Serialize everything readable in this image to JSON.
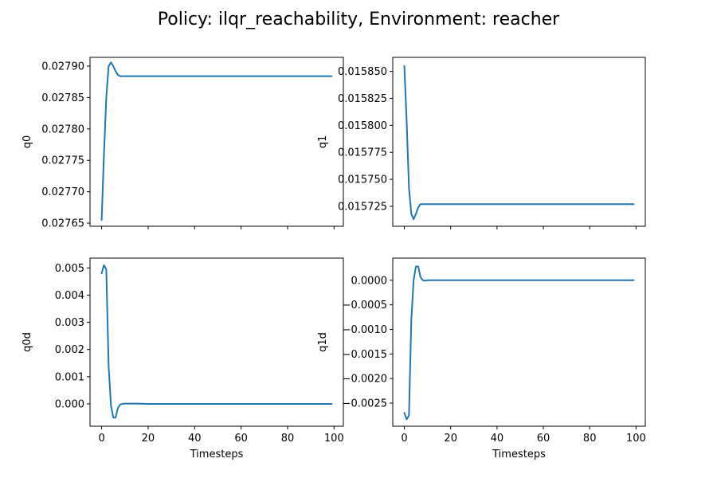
{
  "figure": {
    "title": "Policy: ilqr_reachability, Environment: reacher"
  },
  "chart_data": [
    {
      "type": "line",
      "ylabel": "q0",
      "xlabel": "",
      "xlim": [
        -5,
        104
      ],
      "ylim": [
        0.027645,
        0.027914
      ],
      "xticks": [
        0,
        20,
        40,
        60,
        80,
        100
      ],
      "yticks": [
        0.02765,
        0.0277,
        0.02775,
        0.0278,
        0.02785,
        0.0279
      ],
      "ytick_labels": [
        "0.02765",
        "0.02770",
        "0.02775",
        "0.02780",
        "0.02785",
        "0.02790"
      ],
      "show_xtick_labels": false,
      "color": "#1f77b4",
      "x": [
        0,
        1,
        2,
        3,
        4,
        5,
        6,
        7,
        8,
        9,
        10,
        15,
        20,
        30,
        40,
        50,
        60,
        70,
        80,
        90,
        99
      ],
      "y": [
        0.027655,
        0.02776,
        0.02785,
        0.0279,
        0.027906,
        0.0279,
        0.027892,
        0.027886,
        0.027884,
        0.027884,
        0.027884,
        0.027884,
        0.027884,
        0.027884,
        0.027884,
        0.027884,
        0.027884,
        0.027884,
        0.027884,
        0.027884,
        0.027884
      ]
    },
    {
      "type": "line",
      "ylabel": "q1",
      "xlabel": "",
      "xlim": [
        -5,
        104
      ],
      "ylim": [
        0.0157065,
        0.015863
      ],
      "xticks": [
        0,
        20,
        40,
        60,
        80,
        100
      ],
      "yticks": [
        0.015725,
        0.01575,
        0.015775,
        0.0158,
        0.015825,
        0.01585
      ],
      "ytick_labels": [
        "0.015725",
        "0.015750",
        "0.015775",
        "0.015800",
        "0.015825",
        "0.015850"
      ],
      "show_xtick_labels": false,
      "color": "#1f77b4",
      "x": [
        0,
        1,
        2,
        3,
        4,
        5,
        6,
        7,
        8,
        9,
        10,
        15,
        20,
        30,
        40,
        50,
        60,
        70,
        80,
        90,
        99
      ],
      "y": [
        0.015855,
        0.015804,
        0.015742,
        0.015718,
        0.015713,
        0.015718,
        0.015724,
        0.015727,
        0.015727,
        0.015727,
        0.015727,
        0.015727,
        0.015727,
        0.015727,
        0.015727,
        0.015727,
        0.015727,
        0.015727,
        0.015727,
        0.015727,
        0.015727
      ]
    },
    {
      "type": "line",
      "ylabel": "q0d",
      "xlabel": "Timesteps",
      "xlim": [
        -5,
        104
      ],
      "ylim": [
        -0.00082,
        0.00536
      ],
      "xticks": [
        0,
        20,
        40,
        60,
        80,
        100
      ],
      "xtick_labels": [
        "0",
        "20",
        "40",
        "60",
        "80",
        "100"
      ],
      "yticks": [
        0,
        0.001,
        0.002,
        0.003,
        0.004,
        0.005
      ],
      "ytick_labels": [
        "0.000",
        "0.001",
        "0.002",
        "0.003",
        "0.004",
        "0.005"
      ],
      "show_xtick_labels": true,
      "color": "#1f77b4",
      "x": [
        0,
        1,
        2,
        3,
        4,
        5,
        6,
        7,
        8,
        9,
        10,
        15,
        20,
        30,
        40,
        50,
        60,
        70,
        80,
        90,
        99
      ],
      "y": [
        0.0048,
        0.0051,
        0.00495,
        0.0014,
        -5e-05,
        -0.0005,
        -0.0005,
        -0.00015,
        -2e-05,
        0.0,
        1e-05,
        1e-05,
        0.0,
        0.0,
        0.0,
        0.0,
        0.0,
        0.0,
        0.0,
        0.0,
        0.0
      ]
    },
    {
      "type": "line",
      "ylabel": "q1d",
      "xlabel": "Timesteps",
      "xlim": [
        -5,
        104
      ],
      "ylim": [
        -0.00297,
        0.00045
      ],
      "xticks": [
        0,
        20,
        40,
        60,
        80,
        100
      ],
      "xtick_labels": [
        "0",
        "20",
        "40",
        "60",
        "80",
        "100"
      ],
      "yticks": [
        -0.0025,
        -0.002,
        -0.0015,
        -0.001,
        -0.0005,
        0
      ],
      "ytick_labels": [
        "−0.0025",
        "−0.0020",
        "−0.0015",
        "−0.0010",
        "−0.0005",
        "0.0000"
      ],
      "show_xtick_labels": true,
      "color": "#1f77b4",
      "x": [
        0,
        1,
        2,
        3,
        4,
        5,
        6,
        7,
        8,
        9,
        10,
        15,
        20,
        30,
        40,
        50,
        60,
        70,
        80,
        90,
        99
      ],
      "y": [
        -0.0027,
        -0.00283,
        -0.00275,
        -0.00082,
        0.0,
        0.00028,
        0.00028,
        6e-05,
        0.0,
        -1e-05,
        0.0,
        0.0,
        0.0,
        0.0,
        0.0,
        0.0,
        0.0,
        0.0,
        0.0,
        0.0,
        0.0
      ]
    }
  ]
}
